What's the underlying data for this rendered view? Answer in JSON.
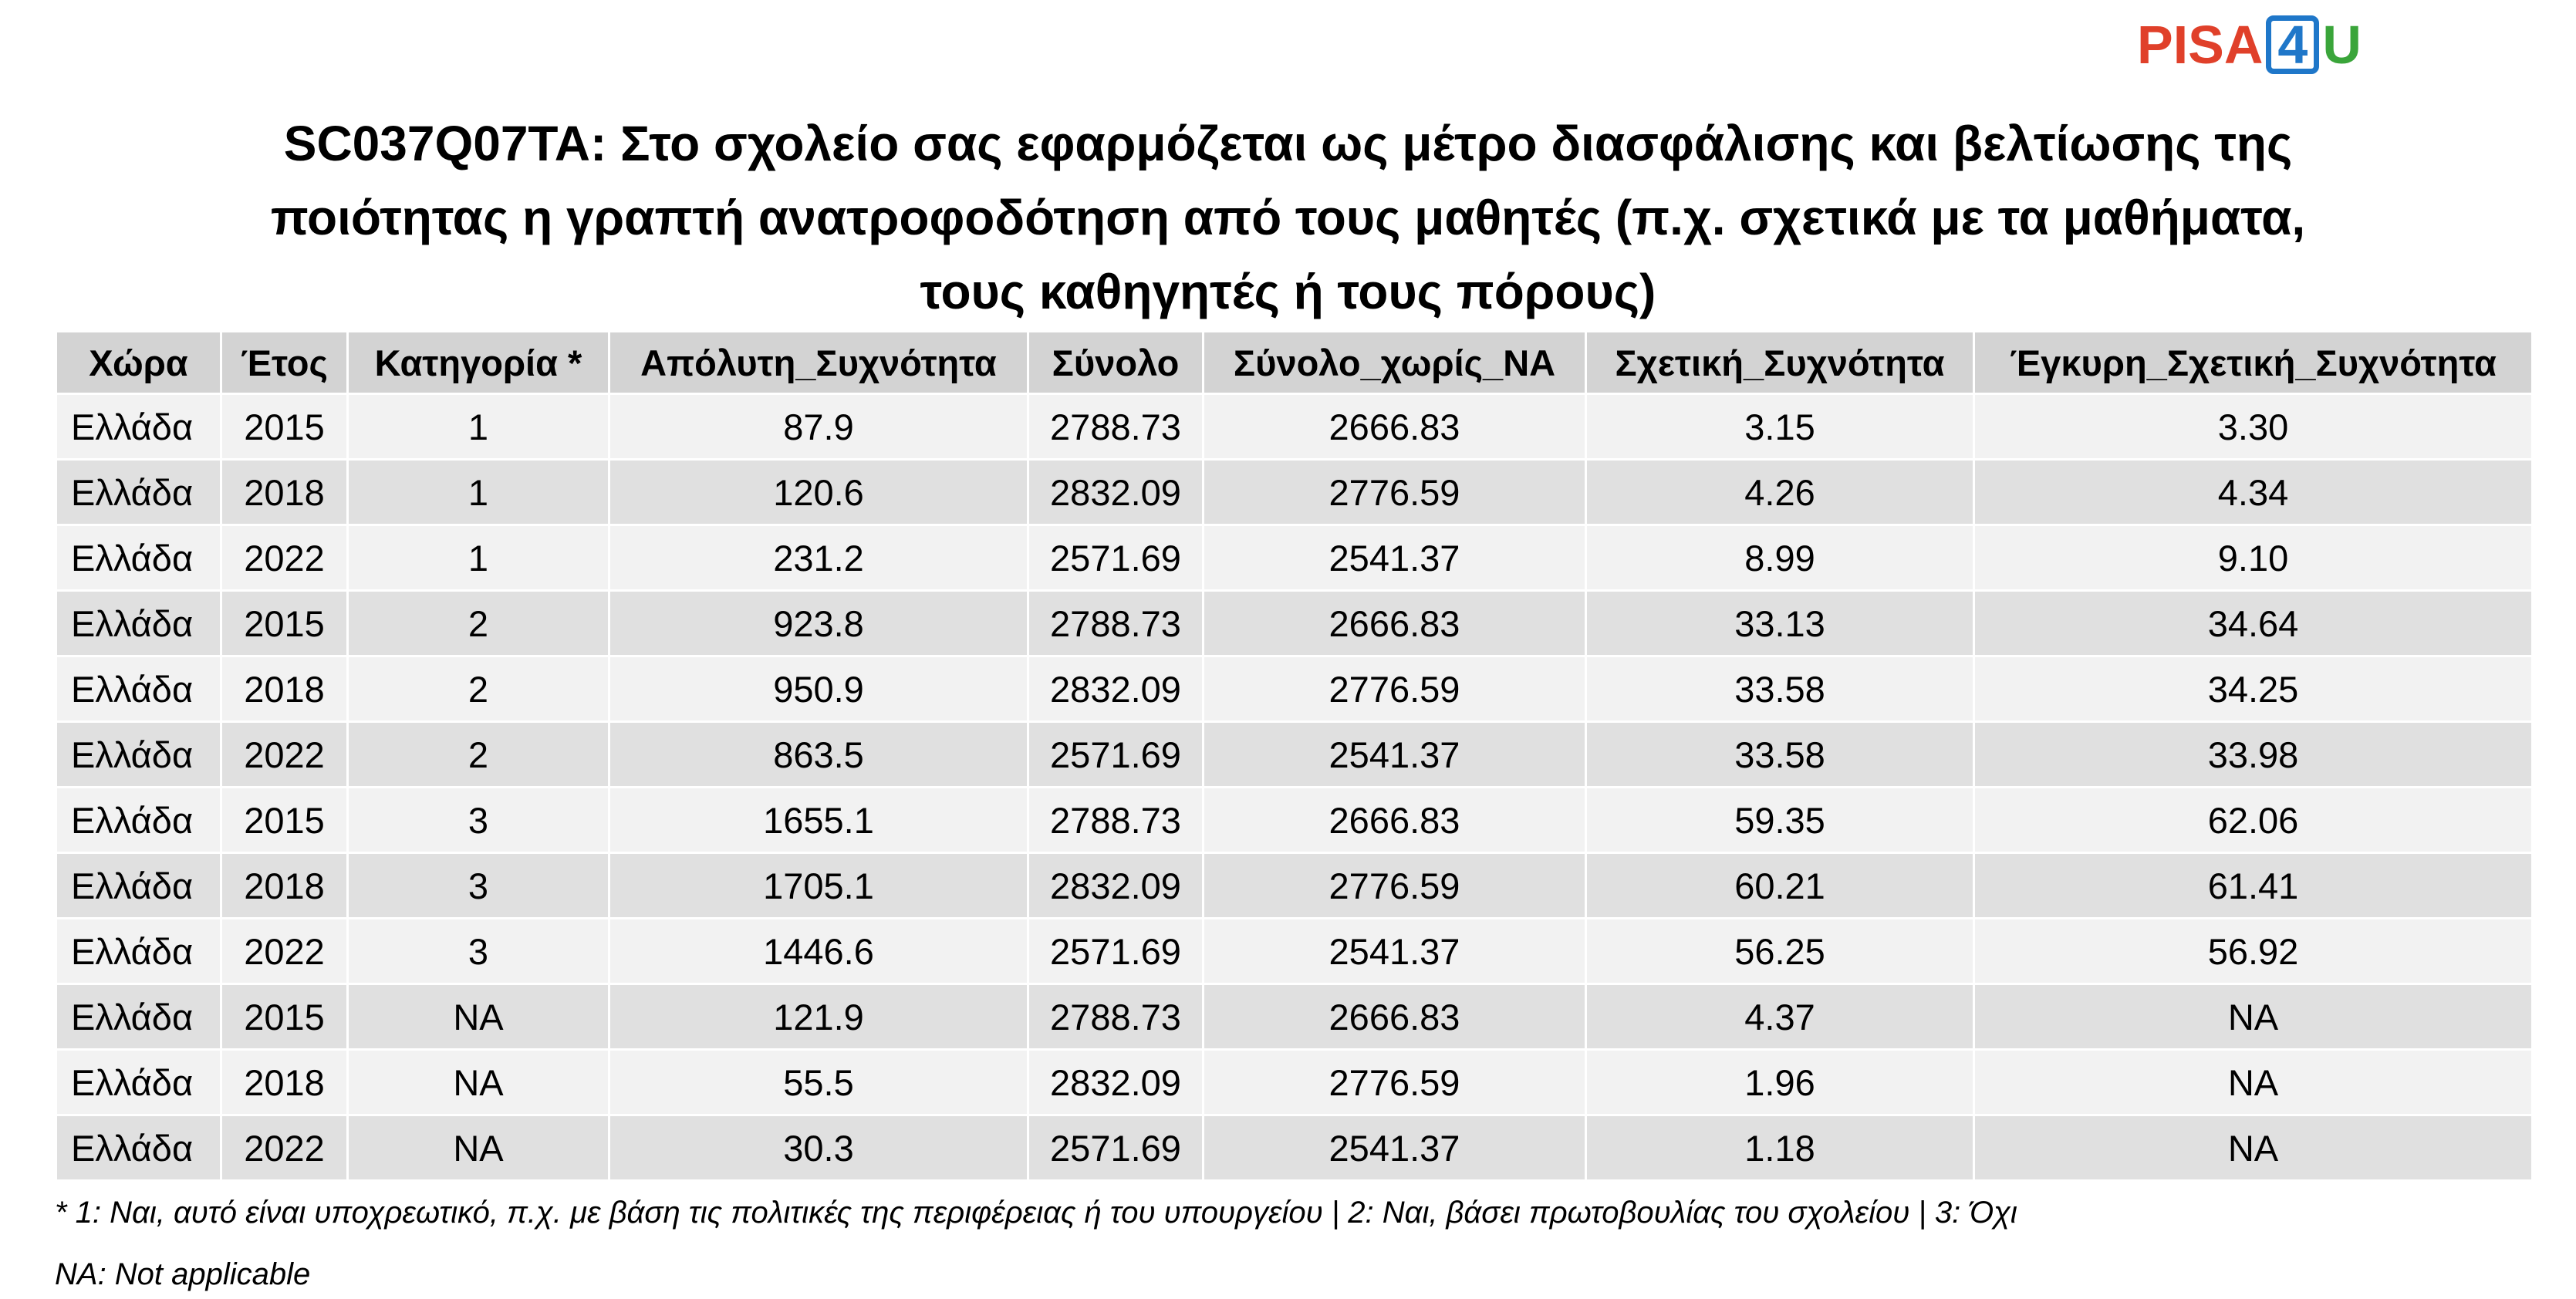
{
  "logo": {
    "part1": "PISA",
    "part2": "4",
    "part3": "U"
  },
  "title": [
    "SC037Q07TA: Στο σχολείο σας εφαρμόζεται ως μέτρο διασφάλισης και βελτίωσης της",
    "ποιότητας η γραπτή ανατροφοδότηση από τους μαθητές (π.χ. σχετικά με τα μαθήματα,",
    "τους καθηγητές ή τους πόρους)"
  ],
  "table": {
    "header": [
      "Χώρα",
      "Έτος",
      "Κατηγορία *",
      "Απόλυτη_Συχνότητα",
      "Σύνολο",
      "Σύνολο_χωρίς_NA",
      "Σχετική_Συχνότητα",
      "Έγκυρη_Σχετική_Συχνότητα"
    ],
    "rows": [
      [
        "Ελλάδα",
        "2015",
        "1",
        "87.9",
        "2788.73",
        "2666.83",
        "3.15",
        "3.30"
      ],
      [
        "Ελλάδα",
        "2018",
        "1",
        "120.6",
        "2832.09",
        "2776.59",
        "4.26",
        "4.34"
      ],
      [
        "Ελλάδα",
        "2022",
        "1",
        "231.2",
        "2571.69",
        "2541.37",
        "8.99",
        "9.10"
      ],
      [
        "Ελλάδα",
        "2015",
        "2",
        "923.8",
        "2788.73",
        "2666.83",
        "33.13",
        "34.64"
      ],
      [
        "Ελλάδα",
        "2018",
        "2",
        "950.9",
        "2832.09",
        "2776.59",
        "33.58",
        "34.25"
      ],
      [
        "Ελλάδα",
        "2022",
        "2",
        "863.5",
        "2571.69",
        "2541.37",
        "33.58",
        "33.98"
      ],
      [
        "Ελλάδα",
        "2015",
        "3",
        "1655.1",
        "2788.73",
        "2666.83",
        "59.35",
        "62.06"
      ],
      [
        "Ελλάδα",
        "2018",
        "3",
        "1705.1",
        "2832.09",
        "2776.59",
        "60.21",
        "61.41"
      ],
      [
        "Ελλάδα",
        "2022",
        "3",
        "1446.6",
        "2571.69",
        "2541.37",
        "56.25",
        "56.92"
      ],
      [
        "Ελλάδα",
        "2015",
        "NA",
        "121.9",
        "2788.73",
        "2666.83",
        "4.37",
        "NA"
      ],
      [
        "Ελλάδα",
        "2018",
        "NA",
        "55.5",
        "2832.09",
        "2776.59",
        "1.96",
        "NA"
      ],
      [
        "Ελλάδα",
        "2022",
        "NA",
        "30.3",
        "2571.69",
        "2541.37",
        "1.18",
        "NA"
      ]
    ]
  },
  "footnotes": [
    "* 1: Ναι, αυτό είναι υποχρεωτικό, π.χ. με βάση τις πολιτικές της περιφέρειας ή του υπουργείου | 2: Ναι, βάσει πρωτοβουλίας του σχολείου | 3: Όχι",
    "NA: Not applicable"
  ]
}
